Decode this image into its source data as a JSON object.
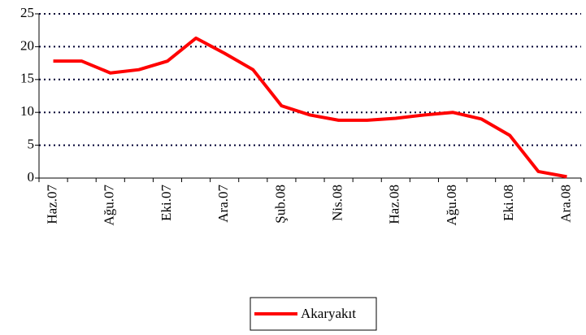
{
  "chart_data": {
    "type": "line",
    "categories": [
      "Haz.07",
      null,
      "Ağu.07",
      null,
      "Eki.07",
      null,
      "Ara.07",
      null,
      "Şub.08",
      null,
      "Nis.08",
      null,
      "Haz.08",
      null,
      "Ağu.08",
      null,
      "Eki.08",
      null,
      "Ara.08"
    ],
    "series": [
      {
        "name": "Akaryakıt",
        "color": "#ff0000",
        "values": [
          17.8,
          17.8,
          16.0,
          16.5,
          17.8,
          21.3,
          19.0,
          16.5,
          11.0,
          9.6,
          8.8,
          8.8,
          9.1,
          9.6,
          10.0,
          9.0,
          6.5,
          1.0,
          0.2
        ]
      }
    ],
    "ylim": [
      0,
      25
    ],
    "yticks": [
      0,
      5,
      10,
      15,
      20,
      25
    ],
    "grid": true,
    "legend": "bottom"
  }
}
